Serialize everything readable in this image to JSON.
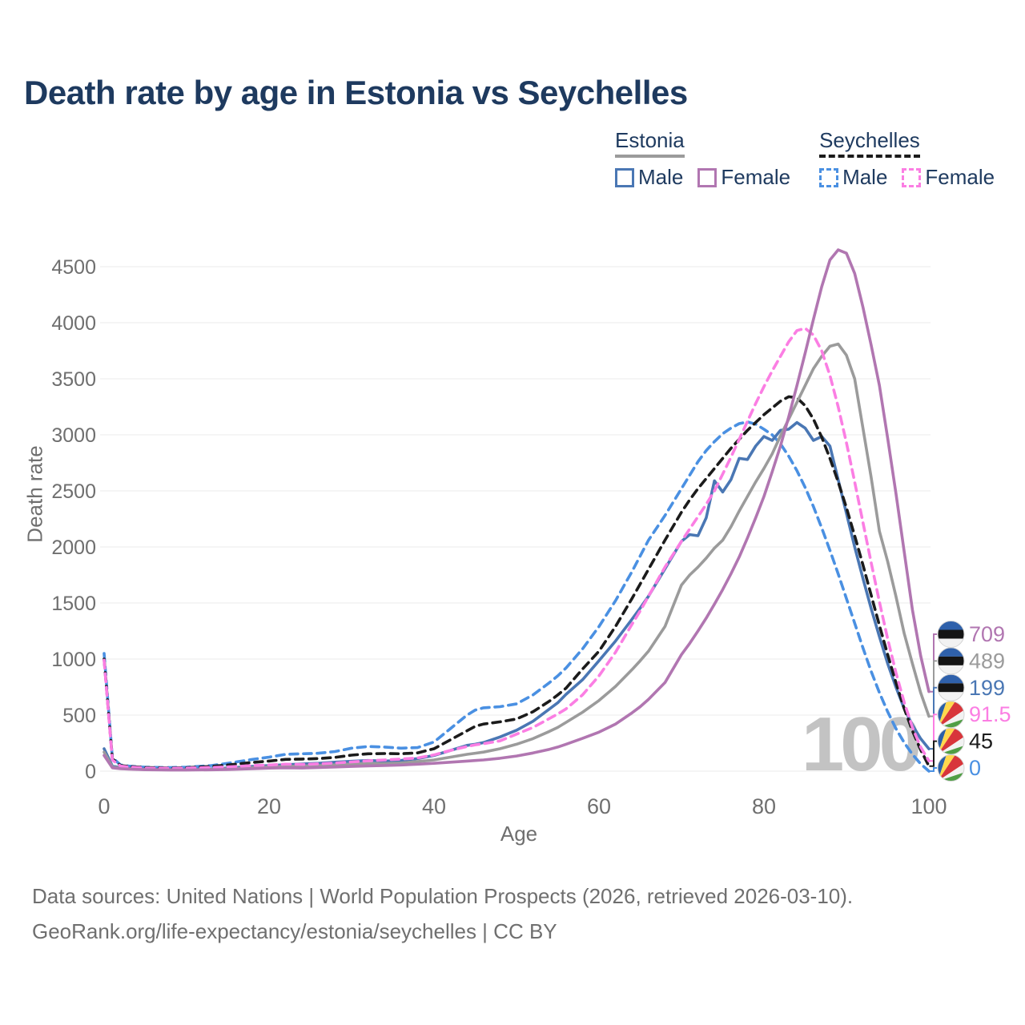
{
  "title": "Death rate by age in Estonia vs Seychelles",
  "legend": {
    "estonia": {
      "label": "Estonia",
      "male": "Male",
      "female": "Female"
    },
    "seychelles": {
      "label": "Seychelles",
      "male": "Male",
      "female": "Female"
    }
  },
  "watermark": "100",
  "footer": {
    "line1": "Data sources: United Nations | World Population Prospects (2026, retrieved 2026-03-10).",
    "line2": "GeoRank.org/life-expectancy/estonia/seychelles | CC BY"
  },
  "colors": {
    "title": "#1e3a5f",
    "axis_text": "#6f6f6f",
    "gridline": "#ebebeb",
    "watermark": "#c3c3c3"
  },
  "flags": {
    "estonia": [
      "#2f61ab",
      "#151515",
      "#f2f2f2"
    ],
    "seychelles": [
      "#2a5fa8",
      "#ffd84d",
      "#d8353b",
      "#f2f2f2",
      "#4f9e45"
    ]
  },
  "chart_data": {
    "type": "line",
    "title": "Death rate by age in Estonia vs Seychelles",
    "xlabel": "Age",
    "ylabel": "Death rate",
    "xlim": [
      0,
      100
    ],
    "ylim": [
      0,
      4500
    ],
    "x_ticks": [
      0,
      20,
      40,
      60,
      80,
      100
    ],
    "y_ticks": [
      0,
      500,
      1000,
      1500,
      2000,
      2500,
      3000,
      3500,
      4000,
      4500
    ],
    "grid": "horizontal",
    "legend_position": "top-right",
    "current_age_indicator": "100",
    "x": [
      0,
      1,
      2,
      3,
      5,
      8,
      10,
      13,
      15,
      18,
      20,
      22,
      24,
      26,
      28,
      30,
      32,
      34,
      36,
      38,
      40,
      42,
      44,
      45,
      46,
      48,
      50,
      52,
      54,
      55,
      56,
      58,
      60,
      62,
      64,
      65,
      66,
      68,
      70,
      71,
      72,
      73,
      74,
      75,
      76,
      77,
      78,
      79,
      80,
      81,
      82,
      83,
      84,
      85,
      86,
      87,
      88,
      89,
      90,
      91,
      92,
      93,
      94,
      95,
      96,
      97,
      98,
      99,
      100
    ],
    "series": [
      {
        "name": "Seychelles Male",
        "group": "Seychelles",
        "sex": "Male",
        "color": "#4a90e2",
        "dash": true,
        "flag": "seychelles",
        "end_label": "0",
        "values": [
          1050,
          120,
          55,
          45,
          35,
          32,
          35,
          50,
          70,
          105,
          125,
          150,
          155,
          160,
          175,
          205,
          220,
          215,
          205,
          210,
          260,
          380,
          500,
          545,
          565,
          575,
          600,
          680,
          790,
          850,
          920,
          1090,
          1290,
          1520,
          1780,
          1920,
          2060,
          2280,
          2520,
          2640,
          2760,
          2860,
          2940,
          3010,
          3060,
          3100,
          3115,
          3095,
          3050,
          3000,
          2920,
          2810,
          2680,
          2530,
          2360,
          2170,
          1970,
          1760,
          1540,
          1320,
          1100,
          890,
          700,
          530,
          380,
          255,
          150,
          65,
          0
        ]
      },
      {
        "name": "Estonia Male",
        "group": "Estonia",
        "sex": "Male",
        "color": "#4a77b4",
        "dash": false,
        "flag": "estonia",
        "end_label": "199",
        "values": [
          200,
          45,
          30,
          25,
          18,
          15,
          15,
          20,
          28,
          42,
          50,
          58,
          64,
          70,
          80,
          88,
          95,
          90,
          95,
          112,
          140,
          185,
          230,
          240,
          255,
          305,
          365,
          445,
          555,
          610,
          685,
          815,
          985,
          1160,
          1355,
          1455,
          1560,
          1805,
          2050,
          2110,
          2100,
          2260,
          2590,
          2490,
          2600,
          2790,
          2780,
          2900,
          2985,
          2950,
          3040,
          3050,
          3110,
          3060,
          2950,
          2985,
          2900,
          2600,
          2300,
          2000,
          1720,
          1450,
          1200,
          960,
          750,
          560,
          410,
          290,
          199
        ]
      },
      {
        "name": "Seychelles",
        "group": "Seychelles",
        "sex": "Both",
        "color": "#1b1b1b",
        "dash": true,
        "flag": "seychelles",
        "end_label": "45",
        "values": [
          1000,
          110,
          50,
          42,
          32,
          28,
          31,
          42,
          55,
          78,
          90,
          105,
          108,
          112,
          123,
          143,
          155,
          157,
          155,
          163,
          200,
          280,
          360,
          400,
          420,
          440,
          465,
          530,
          625,
          680,
          740,
          910,
          1070,
          1290,
          1540,
          1670,
          1800,
          2060,
          2310,
          2420,
          2520,
          2610,
          2700,
          2790,
          2880,
          2960,
          3040,
          3110,
          3180,
          3240,
          3300,
          3340,
          3330,
          3260,
          3140,
          2980,
          2790,
          2580,
          2350,
          2100,
          1840,
          1570,
          1300,
          1040,
          790,
          560,
          360,
          190,
          45
        ]
      },
      {
        "name": "Estonia",
        "group": "Estonia",
        "sex": "Both",
        "color": "#9b9b9b",
        "dash": false,
        "flag": "estonia",
        "end_label": "489",
        "values": [
          170,
          38,
          26,
          21,
          15,
          12,
          12,
          16,
          21,
          32,
          38,
          43,
          45,
          50,
          57,
          63,
          68,
          68,
          73,
          85,
          100,
          125,
          150,
          160,
          170,
          200,
          240,
          290,
          355,
          390,
          435,
          525,
          630,
          755,
          905,
          985,
          1070,
          1290,
          1660,
          1750,
          1820,
          1900,
          1990,
          2060,
          2180,
          2320,
          2450,
          2580,
          2700,
          2830,
          2990,
          3140,
          3290,
          3440,
          3590,
          3700,
          3790,
          3810,
          3710,
          3500,
          3060,
          2620,
          2140,
          1870,
          1560,
          1230,
          960,
          700,
          489
        ]
      },
      {
        "name": "Seychelles Female",
        "group": "Seychelles",
        "sex": "Female",
        "color": "#fb7ee3",
        "dash": true,
        "flag": "seychelles",
        "end_label": "91.5",
        "values": [
          990,
          100,
          45,
          38,
          28,
          25,
          27,
          33,
          38,
          50,
          55,
          62,
          60,
          65,
          72,
          82,
          92,
          100,
          108,
          118,
          145,
          185,
          220,
          235,
          245,
          270,
          330,
          390,
          470,
          510,
          555,
          680,
          850,
          1060,
          1310,
          1430,
          1560,
          1820,
          2050,
          2160,
          2270,
          2380,
          2500,
          2650,
          2800,
          2960,
          3120,
          3280,
          3430,
          3570,
          3700,
          3830,
          3930,
          3950,
          3890,
          3750,
          3530,
          3250,
          2930,
          2580,
          2220,
          1860,
          1510,
          1180,
          880,
          615,
          390,
          215,
          91.5
        ]
      },
      {
        "name": "Estonia Female",
        "group": "Estonia",
        "sex": "Female",
        "color": "#b176b1",
        "dash": false,
        "flag": "estonia",
        "end_label": "709",
        "values": [
          140,
          30,
          22,
          18,
          13,
          10,
          10,
          12,
          15,
          22,
          27,
          30,
          28,
          33,
          37,
          42,
          47,
          50,
          55,
          62,
          70,
          80,
          90,
          95,
          100,
          115,
          135,
          162,
          195,
          215,
          240,
          292,
          348,
          420,
          520,
          575,
          640,
          790,
          1040,
          1140,
          1250,
          1365,
          1490,
          1620,
          1760,
          1910,
          2080,
          2260,
          2450,
          2670,
          2900,
          3160,
          3440,
          3730,
          4030,
          4320,
          4560,
          4650,
          4620,
          4440,
          4140,
          3800,
          3440,
          2970,
          2480,
          1960,
          1440,
          1030,
          709
        ]
      }
    ]
  }
}
